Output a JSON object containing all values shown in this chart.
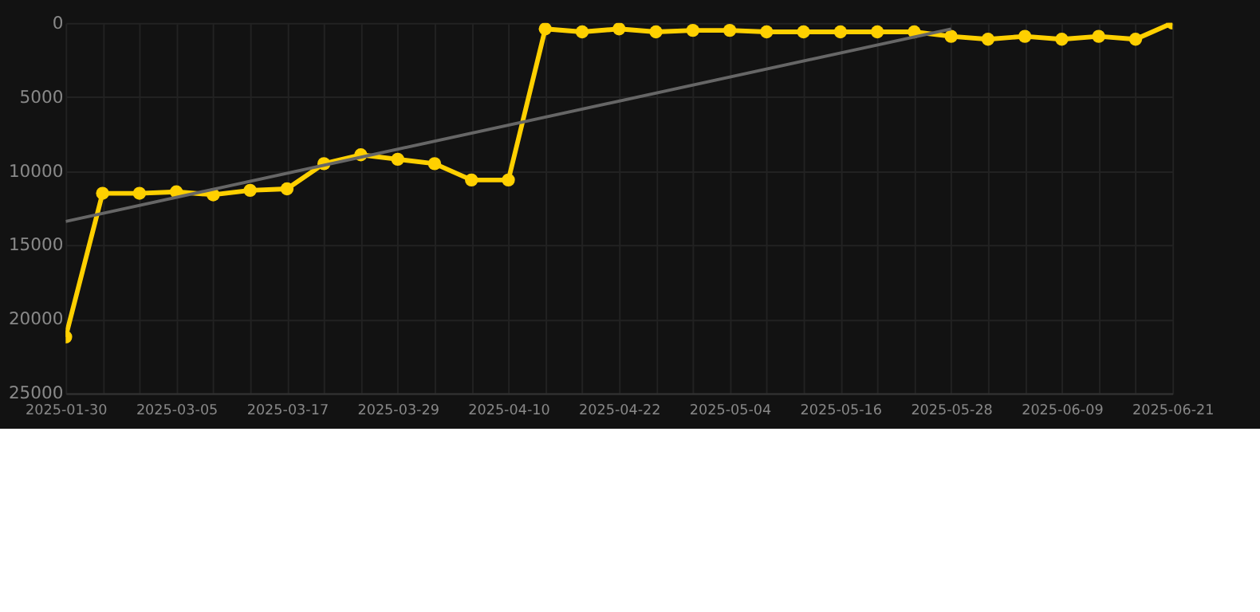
{
  "chart_data": {
    "type": "line",
    "categories": [
      "2025-01-30",
      null,
      null,
      "2025-03-05",
      null,
      null,
      "2025-03-17",
      null,
      null,
      "2025-03-29",
      null,
      null,
      "2025-04-10",
      null,
      null,
      "2025-04-22",
      null,
      null,
      "2025-05-04",
      null,
      null,
      "2025-05-16",
      null,
      null,
      "2025-05-28",
      null,
      null,
      "2025-06-09",
      null,
      null,
      "2025-06-21"
    ],
    "series": [
      {
        "color": "#ffd000",
        "marker": "circle",
        "values": [
          21200,
          11500,
          11500,
          11400,
          11600,
          11300,
          11200,
          9500,
          8900,
          9200,
          9500,
          10600,
          10600,
          400,
          600,
          400,
          600,
          500,
          500,
          600,
          600,
          600,
          600,
          600,
          900,
          1100,
          900,
          1100,
          900,
          1100,
          0
        ]
      },
      {
        "type": "line",
        "color": "#666666",
        "marker": "none",
        "values": [
          13400,
          null,
          null,
          null,
          null,
          null,
          null,
          null,
          null,
          null,
          null,
          null,
          null,
          null,
          null,
          null,
          null,
          null,
          null,
          null,
          null,
          null,
          null,
          null,
          400,
          null,
          null,
          null,
          null,
          null,
          null
        ]
      }
    ],
    "ylim": [
      25000,
      0
    ],
    "yticks": [
      0,
      5000,
      10000,
      15000,
      20000,
      25000
    ],
    "grid": true
  }
}
